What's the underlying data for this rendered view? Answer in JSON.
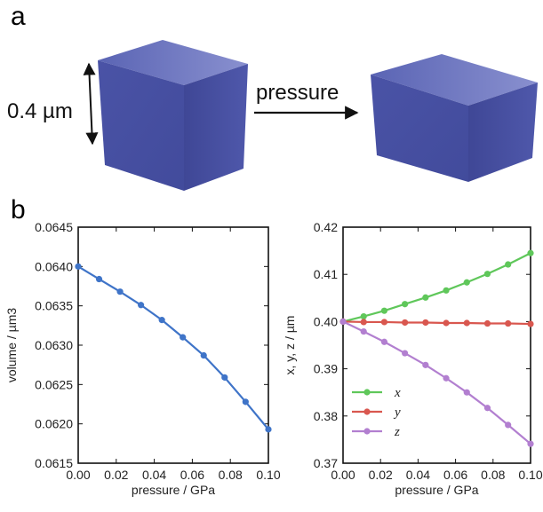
{
  "panels": {
    "a": "a",
    "b": "b"
  },
  "schematic": {
    "dimension_label": "0.4 µm",
    "arrow_label": "pressure",
    "cube_colors": {
      "front": "#4a53a6",
      "side": "#3f4796",
      "top": "#6570c0"
    }
  },
  "chart_data": [
    {
      "type": "line",
      "xlabel": "pressure / GPa",
      "ylabel": "volume / µm3",
      "xlim": [
        0.0,
        0.1
      ],
      "ylim": [
        0.0615,
        0.0645
      ],
      "xticks": [
        "0.00",
        "0.02",
        "0.04",
        "0.06",
        "0.08",
        "0.10"
      ],
      "yticks": [
        "0.0615",
        "0.0620",
        "0.0625",
        "0.0630",
        "0.0635",
        "0.0640",
        "0.0645"
      ],
      "x": [
        0.0,
        0.011,
        0.022,
        0.033,
        0.044,
        0.055,
        0.066,
        0.077,
        0.088,
        0.1
      ],
      "series": [
        {
          "values": [
            0.064,
            0.06384,
            0.06368,
            0.06351,
            0.06332,
            0.0631,
            0.06287,
            0.06259,
            0.06228,
            0.06193
          ],
          "color": "#3f74c8"
        }
      ],
      "grid": false
    },
    {
      "type": "line",
      "xlabel": "pressure / GPa",
      "ylabel": "x, y, z / µm",
      "xlim": [
        0.0,
        0.1
      ],
      "ylim": [
        0.37,
        0.42
      ],
      "xticks": [
        "0.00",
        "0.02",
        "0.04",
        "0.06",
        "0.08",
        "0.10"
      ],
      "yticks": [
        "0.37",
        "0.38",
        "0.39",
        "0.40",
        "0.41",
        "0.42"
      ],
      "x": [
        0.0,
        0.011,
        0.022,
        0.033,
        0.044,
        0.055,
        0.066,
        0.077,
        0.088,
        0.1
      ],
      "series": [
        {
          "name": "x",
          "color": "#5fc75a",
          "values": [
            0.4,
            0.4011,
            0.4023,
            0.4037,
            0.4051,
            0.4066,
            0.4083,
            0.4101,
            0.4121,
            0.4145
          ]
        },
        {
          "name": "y",
          "color": "#d9574f",
          "values": [
            0.4,
            0.3999,
            0.3999,
            0.3998,
            0.3998,
            0.3997,
            0.3997,
            0.3996,
            0.3996,
            0.3995
          ]
        },
        {
          "name": "z",
          "color": "#b27fd0",
          "values": [
            0.4,
            0.3979,
            0.3957,
            0.3933,
            0.3908,
            0.388,
            0.385,
            0.3817,
            0.3781,
            0.3741
          ]
        }
      ],
      "legend": "bottom-left",
      "grid": false
    }
  ]
}
